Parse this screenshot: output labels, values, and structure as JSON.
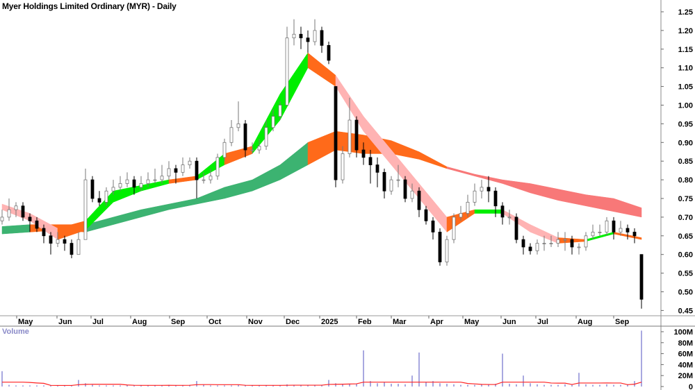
{
  "chart_data": {
    "type": "candlestick",
    "title": "Myer Holdings Limited Ordinary (MYR) - Daily",
    "volume_label": "Volume",
    "x_tick_labels": [
      "May",
      "Jun",
      "Jul",
      "Aug",
      "Sep",
      "Oct",
      "Nov",
      "Dec",
      "2025",
      "Feb",
      "Mar",
      "Apr",
      "May",
      "Jun",
      "Jul",
      "Aug",
      "Sep"
    ],
    "y_ticks": [
      "1.25",
      "1.20",
      "1.15",
      "1.10",
      "1.05",
      "1.00",
      "0.95",
      "0.90",
      "0.85",
      "0.80",
      "0.75",
      "0.70",
      "0.65",
      "0.60",
      "0.55",
      "0.50",
      "0.45"
    ],
    "ylim": [
      0.45,
      1.25
    ],
    "volume_ticks": [
      "100M",
      "80M",
      "60M",
      "40M",
      "20M",
      "0"
    ],
    "volume_ylim": [
      0,
      100
    ],
    "colors": {
      "up_candle": "#ffffff",
      "down_candle": "#000000",
      "short_rising": "#00ee00",
      "short_mixed": "#ff6a1a",
      "short_falling": "#ffb3b3",
      "long_rising": "#3cb371",
      "long_mixed": "#ff6a1a",
      "long_falling": "#f87878",
      "volume_bar": "#8a8ad6",
      "volume_avg": "#ff2020"
    },
    "ohlc": [
      [
        0.69,
        0.72,
        0.68,
        0.7
      ],
      [
        0.7,
        0.75,
        0.69,
        0.72
      ],
      [
        0.72,
        0.74,
        0.7,
        0.73
      ],
      [
        0.73,
        0.74,
        0.69,
        0.7
      ],
      [
        0.7,
        0.71,
        0.66,
        0.69
      ],
      [
        0.69,
        0.7,
        0.66,
        0.67
      ],
      [
        0.67,
        0.68,
        0.63,
        0.65
      ],
      [
        0.65,
        0.66,
        0.6,
        0.63
      ],
      [
        0.63,
        0.66,
        0.62,
        0.64
      ],
      [
        0.64,
        0.65,
        0.61,
        0.63
      ],
      [
        0.63,
        0.64,
        0.59,
        0.6
      ],
      [
        0.6,
        0.66,
        0.6,
        0.64
      ],
      [
        0.64,
        0.83,
        0.64,
        0.8
      ],
      [
        0.8,
        0.81,
        0.74,
        0.75
      ],
      [
        0.75,
        0.77,
        0.73,
        0.74
      ],
      [
        0.74,
        0.78,
        0.73,
        0.77
      ],
      [
        0.77,
        0.8,
        0.76,
        0.78
      ],
      [
        0.78,
        0.81,
        0.77,
        0.79
      ],
      [
        0.79,
        0.82,
        0.78,
        0.8
      ],
      [
        0.8,
        0.81,
        0.76,
        0.78
      ],
      [
        0.78,
        0.81,
        0.77,
        0.79
      ],
      [
        0.79,
        0.82,
        0.78,
        0.8
      ],
      [
        0.8,
        0.83,
        0.79,
        0.8
      ],
      [
        0.8,
        0.84,
        0.79,
        0.81
      ],
      [
        0.81,
        0.85,
        0.8,
        0.83
      ],
      [
        0.83,
        0.84,
        0.79,
        0.82
      ],
      [
        0.82,
        0.86,
        0.81,
        0.84
      ],
      [
        0.84,
        0.86,
        0.83,
        0.85
      ],
      [
        0.85,
        0.86,
        0.75,
        0.8
      ],
      [
        0.8,
        0.82,
        0.79,
        0.8
      ],
      [
        0.8,
        0.83,
        0.79,
        0.81
      ],
      [
        0.81,
        0.87,
        0.8,
        0.86
      ],
      [
        0.86,
        0.91,
        0.85,
        0.9
      ],
      [
        0.9,
        0.96,
        0.89,
        0.94
      ],
      [
        0.94,
        1.01,
        0.93,
        0.95
      ],
      [
        0.95,
        0.96,
        0.86,
        0.88
      ],
      [
        0.88,
        0.9,
        0.87,
        0.88
      ],
      [
        0.88,
        0.91,
        0.87,
        0.89
      ],
      [
        0.89,
        0.96,
        0.88,
        0.94
      ],
      [
        0.94,
        0.99,
        0.93,
        0.97
      ],
      [
        0.97,
        1.01,
        0.96,
        1.0
      ],
      [
        1.0,
        1.21,
        1.0,
        1.18
      ],
      [
        1.18,
        1.23,
        1.16,
        1.19
      ],
      [
        1.19,
        1.21,
        1.15,
        1.18
      ],
      [
        1.18,
        1.2,
        1.14,
        1.17
      ],
      [
        1.17,
        1.23,
        1.16,
        1.2
      ],
      [
        1.2,
        1.21,
        1.14,
        1.16
      ],
      [
        1.16,
        1.17,
        1.11,
        1.12
      ],
      [
        1.05,
        1.05,
        0.78,
        0.8
      ],
      [
        0.8,
        0.89,
        0.79,
        0.87
      ],
      [
        0.87,
        1.02,
        0.86,
        0.96
      ],
      [
        0.96,
        0.97,
        0.86,
        0.88
      ],
      [
        0.88,
        0.9,
        0.84,
        0.86
      ],
      [
        0.86,
        0.88,
        0.79,
        0.84
      ],
      [
        0.84,
        0.86,
        0.78,
        0.82
      ],
      [
        0.82,
        0.83,
        0.75,
        0.77
      ],
      [
        0.77,
        0.81,
        0.76,
        0.8
      ],
      [
        0.8,
        0.84,
        0.78,
        0.8
      ],
      [
        0.8,
        0.81,
        0.74,
        0.75
      ],
      [
        0.75,
        0.79,
        0.74,
        0.77
      ],
      [
        0.77,
        0.78,
        0.7,
        0.72
      ],
      [
        0.72,
        0.73,
        0.68,
        0.69
      ],
      [
        0.69,
        0.7,
        0.64,
        0.66
      ],
      [
        0.66,
        0.67,
        0.57,
        0.58
      ],
      [
        0.58,
        0.65,
        0.57,
        0.64
      ],
      [
        0.64,
        0.71,
        0.63,
        0.7
      ],
      [
        0.7,
        0.73,
        0.69,
        0.71
      ],
      [
        0.71,
        0.76,
        0.7,
        0.74
      ],
      [
        0.74,
        0.79,
        0.73,
        0.77
      ],
      [
        0.77,
        0.8,
        0.75,
        0.78
      ],
      [
        0.78,
        0.81,
        0.74,
        0.77
      ],
      [
        0.77,
        0.78,
        0.7,
        0.73
      ],
      [
        0.73,
        0.74,
        0.68,
        0.7
      ],
      [
        0.7,
        0.72,
        0.68,
        0.7
      ],
      [
        0.7,
        0.71,
        0.63,
        0.64
      ],
      [
        0.64,
        0.65,
        0.6,
        0.62
      ],
      [
        0.62,
        0.63,
        0.6,
        0.61
      ],
      [
        0.61,
        0.64,
        0.6,
        0.63
      ],
      [
        0.63,
        0.65,
        0.61,
        0.63
      ],
      [
        0.63,
        0.65,
        0.62,
        0.63
      ],
      [
        0.63,
        0.66,
        0.62,
        0.64
      ],
      [
        0.64,
        0.66,
        0.61,
        0.64
      ],
      [
        0.64,
        0.65,
        0.6,
        0.62
      ],
      [
        0.62,
        0.63,
        0.6,
        0.62
      ],
      [
        0.62,
        0.66,
        0.61,
        0.65
      ],
      [
        0.65,
        0.68,
        0.64,
        0.66
      ],
      [
        0.66,
        0.68,
        0.65,
        0.66
      ],
      [
        0.66,
        0.7,
        0.65,
        0.69
      ],
      [
        0.69,
        0.7,
        0.64,
        0.66
      ],
      [
        0.66,
        0.69,
        0.65,
        0.67
      ],
      [
        0.67,
        0.68,
        0.64,
        0.66
      ],
      [
        0.66,
        0.67,
        0.63,
        0.65
      ],
      [
        0.6,
        0.6,
        0.455,
        0.48
      ]
    ],
    "volume_millions": [
      28,
      3,
      2,
      2,
      2,
      2,
      2,
      2,
      2,
      2,
      2,
      12,
      6,
      3,
      2,
      2,
      2,
      2,
      3,
      2,
      2,
      2,
      2,
      2,
      3,
      2,
      2,
      3,
      10,
      3,
      2,
      2,
      2,
      2,
      3,
      2,
      2,
      2,
      2,
      2,
      2,
      4,
      3,
      2,
      2,
      2,
      2,
      12,
      6,
      4,
      4,
      5,
      66,
      10,
      6,
      8,
      5,
      5,
      4,
      20,
      62,
      8,
      10,
      6,
      5,
      4,
      3,
      3,
      3,
      4,
      4,
      5,
      60,
      5,
      4,
      20,
      6,
      4,
      3,
      3,
      3,
      4,
      3,
      25,
      4,
      3,
      3,
      4,
      3,
      3,
      4,
      10,
      102
    ],
    "short_ribbon": {
      "sample_every": 4,
      "bands": [
        [
          0.72,
          0.735
        ],
        [
          0.69,
          0.71
        ],
        [
          0.64,
          0.67
        ],
        [
          0.665,
          0.69
        ],
        [
          0.74,
          0.77
        ],
        [
          0.77,
          0.785
        ],
        [
          0.79,
          0.8
        ],
        [
          0.8,
          0.81
        ],
        [
          0.84,
          0.87
        ],
        [
          0.87,
          0.89
        ],
        [
          0.96,
          1.03
        ],
        [
          1.1,
          1.14
        ],
        [
          1.05,
          1.08
        ],
        [
          0.93,
          0.97
        ],
        [
          0.84,
          0.88
        ],
        [
          0.75,
          0.79
        ],
        [
          0.66,
          0.7
        ],
        [
          0.71,
          0.72
        ],
        [
          0.71,
          0.72
        ],
        [
          0.66,
          0.68
        ],
        [
          0.63,
          0.645
        ],
        [
          0.635,
          0.64
        ],
        [
          0.655,
          0.66
        ],
        [
          0.64,
          0.645
        ]
      ],
      "state": [
        "falling",
        "falling",
        "mixed",
        "rising",
        "rising",
        "rising",
        "mixed",
        "rising",
        "mixed",
        "rising",
        "rising",
        "mixed",
        "falling",
        "falling",
        "falling",
        "falling",
        "mixed",
        "rising",
        "falling",
        "falling",
        "mixed",
        "rising",
        "mixed",
        "mixed"
      ]
    },
    "long_ribbon": {
      "sample_every": 4,
      "bands": [
        [
          0.655,
          0.675
        ],
        [
          0.66,
          0.68
        ],
        [
          0.665,
          0.68
        ],
        [
          0.66,
          0.68
        ],
        [
          0.68,
          0.7
        ],
        [
          0.7,
          0.72
        ],
        [
          0.72,
          0.735
        ],
        [
          0.735,
          0.75
        ],
        [
          0.75,
          0.78
        ],
        [
          0.77,
          0.8
        ],
        [
          0.8,
          0.84
        ],
        [
          0.84,
          0.9
        ],
        [
          0.88,
          0.93
        ],
        [
          0.87,
          0.92
        ],
        [
          0.87,
          0.905
        ],
        [
          0.855,
          0.875
        ],
        [
          0.83,
          0.835
        ],
        [
          0.81,
          0.815
        ],
        [
          0.79,
          0.8
        ],
        [
          0.765,
          0.79
        ],
        [
          0.745,
          0.775
        ],
        [
          0.73,
          0.76
        ],
        [
          0.715,
          0.75
        ],
        [
          0.7,
          0.725
        ]
      ],
      "state": [
        "rising",
        "mixed",
        "mixed",
        "rising",
        "rising",
        "rising",
        "rising",
        "rising",
        "rising",
        "rising",
        "rising",
        "mixed",
        "mixed",
        "mixed",
        "mixed",
        "mixed",
        "falling",
        "falling",
        "falling",
        "falling",
        "falling",
        "falling",
        "falling",
        "falling"
      ]
    },
    "grid": false
  }
}
